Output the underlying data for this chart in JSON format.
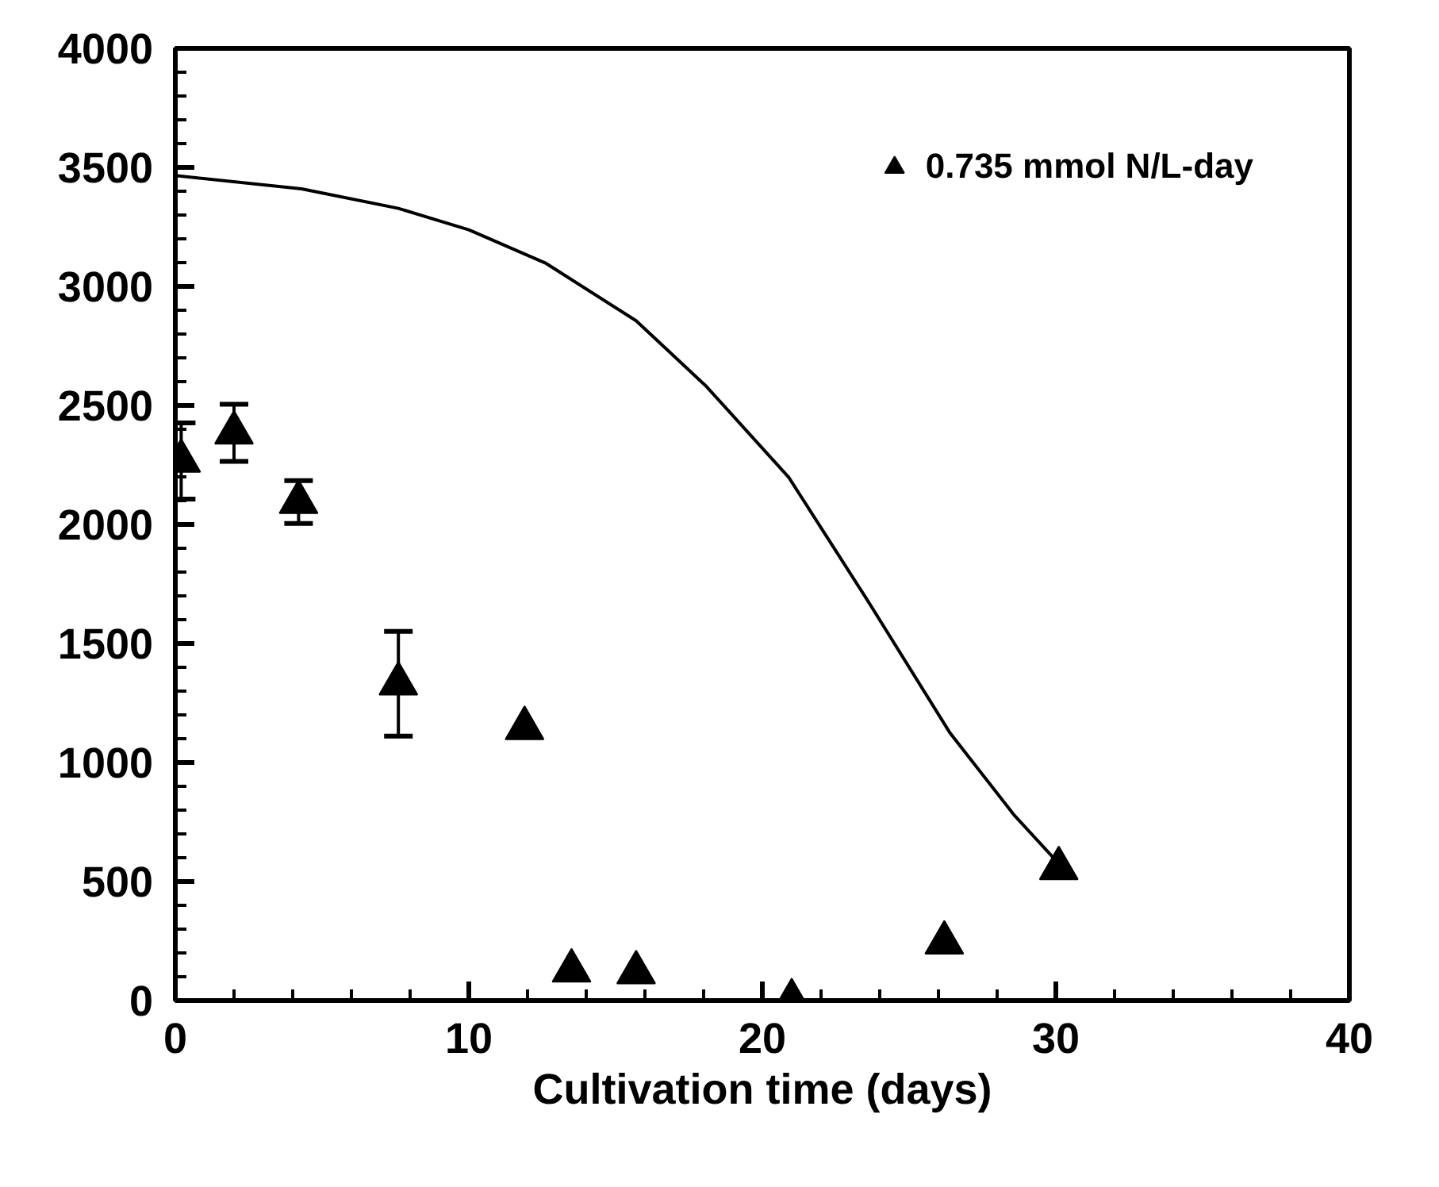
{
  "chart_data": {
    "type": "scatter",
    "xlabel": "Cultivation time (days)",
    "xlim": [
      0,
      40
    ],
    "xticks": [
      0,
      10,
      20,
      30,
      40
    ],
    "ylim": [
      0,
      4000
    ],
    "yticks": [
      0,
      500,
      1000,
      1500,
      2000,
      2500,
      3000,
      3500,
      4000
    ],
    "grid": false,
    "legend": "top right",
    "series": [
      {
        "name": "0.735 mmol N/L-day",
        "color": "#000000",
        "marker": "triangle",
        "x": [
          0.2,
          2.0,
          4.2,
          7.6,
          11.9,
          13.5,
          15.7,
          21.0,
          26.2,
          30.1
        ],
        "values": [
          2267,
          2385,
          2094,
          1331,
          1144,
          125,
          118,
          0,
          243,
          555
        ],
        "errors": [
          160,
          120,
          90,
          220,
          null,
          null,
          null,
          null,
          null,
          null
        ]
      },
      {
        "type": "line",
        "color": "#000000",
        "line_style": "solid",
        "x": [
          0,
          4.3,
          7.6,
          10,
          12.6,
          15.7,
          18.1,
          20.9,
          23.6,
          26.4,
          28.6,
          30
        ],
        "values": [
          3466,
          3410,
          3328,
          3238,
          3099,
          2856,
          2579,
          2198,
          1678,
          1123,
          776,
          589
        ]
      }
    ]
  }
}
